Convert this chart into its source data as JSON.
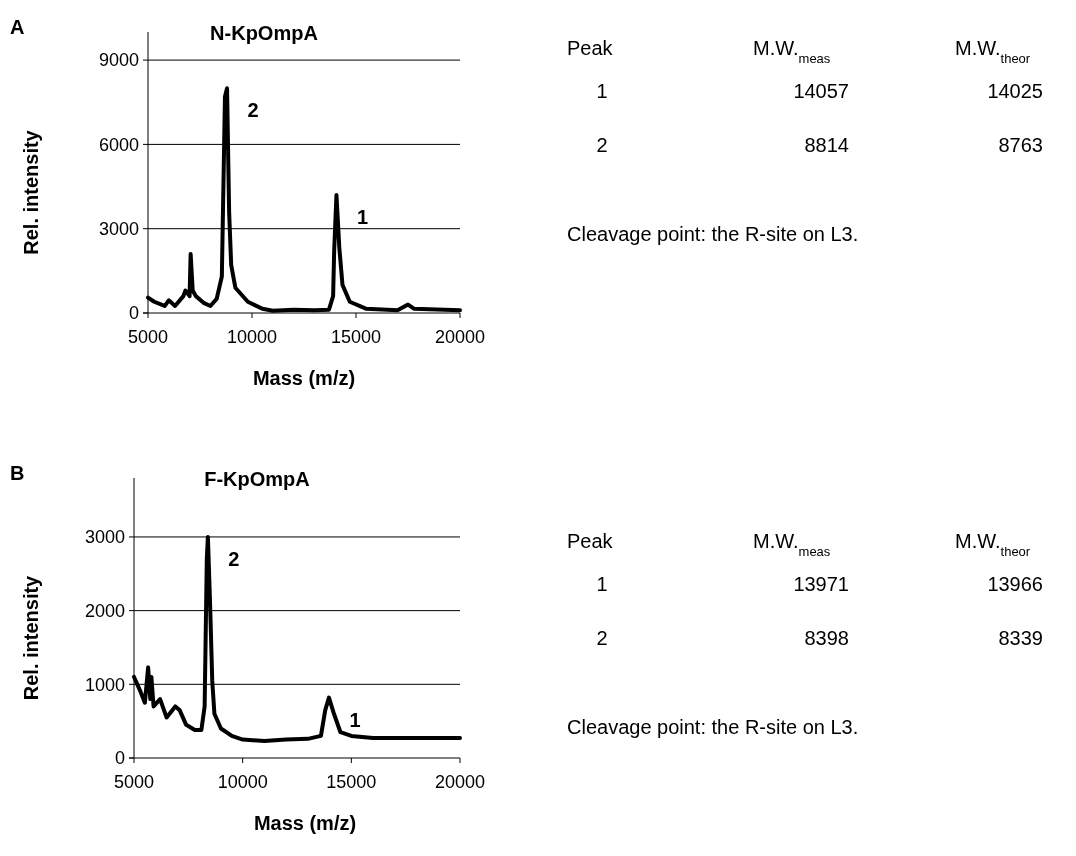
{
  "chart_data": [
    {
      "type": "line",
      "title": "N-KpOmpA",
      "xlabel": "Mass (m/z)",
      "ylabel": "Rel. intensity",
      "xlim": [
        5000,
        20000
      ],
      "xticks": [
        5000,
        10000,
        15000,
        20000
      ],
      "ylim": [
        0,
        10000
      ],
      "yticks": [
        0,
        3000,
        6000,
        9000
      ],
      "grid": "y",
      "annotations": [
        "A",
        {
          "text": "2",
          "x": 8800,
          "y": 8000
        },
        {
          "text": "1",
          "x": 14060,
          "y": 4200
        }
      ],
      "x": [
        5000,
        5300,
        5800,
        6000,
        6300,
        6700,
        6800,
        7000,
        7050,
        7150,
        7300,
        7700,
        8000,
        8300,
        8550,
        8700,
        8800,
        8900,
        9000,
        9200,
        9800,
        10500,
        11000,
        12000,
        13000,
        13700,
        13900,
        13950,
        14060,
        14200,
        14350,
        14700,
        15500,
        17000,
        17500,
        17800,
        20000
      ],
      "series": [
        {
          "color": "#000000",
          "values": [
            550,
            400,
            250,
            450,
            250,
            600,
            800,
            600,
            2100,
            800,
            600,
            350,
            250,
            500,
            1300,
            7700,
            8000,
            3600,
            1700,
            900,
            400,
            150,
            80,
            120,
            100,
            120,
            600,
            2200,
            4200,
            2300,
            1000,
            400,
            150,
            100,
            300,
            150,
            100
          ]
        }
      ]
    },
    {
      "type": "other",
      "annotations": [
        "Peak",
        "M.W.$_{meas}$",
        "M.W.$_{theor}$",
        "1",
        "14057",
        "14025",
        "2",
        "8814",
        "8763",
        "Cleavage point: the R-site on L3."
      ]
    },
    {
      "type": "line",
      "title": "F-KpOmpA",
      "xlabel": "Mass (m/z)",
      "ylabel": "Rel. intensity",
      "xlim": [
        5000,
        20000
      ],
      "xticks": [
        5000,
        10000,
        15000,
        20000
      ],
      "ylim": [
        0,
        3800
      ],
      "yticks": [
        0,
        1000,
        2000,
        3000
      ],
      "grid": "y",
      "annotations": [
        "B",
        {
          "text": "2",
          "x": 8400,
          "y": 3000
        },
        {
          "text": "1",
          "x": 13970,
          "y": 820
        }
      ],
      "x": [
        5000,
        5300,
        5500,
        5650,
        5750,
        5800,
        5900,
        6200,
        6500,
        6900,
        7100,
        7400,
        7800,
        8100,
        8250,
        8350,
        8400,
        8500,
        8600,
        8700,
        9000,
        9500,
        10000,
        11000,
        12000,
        13000,
        13600,
        13800,
        13970,
        14200,
        14500,
        15000,
        16000,
        18000,
        20000
      ],
      "series": [
        {
          "color": "#000000",
          "values": [
            1100,
            900,
            750,
            1230,
            800,
            1100,
            700,
            800,
            550,
            700,
            650,
            450,
            380,
            380,
            700,
            2700,
            3000,
            2100,
            1050,
            600,
            400,
            300,
            250,
            230,
            250,
            260,
            300,
            650,
            820,
            600,
            350,
            300,
            270,
            270,
            270
          ]
        }
      ]
    },
    {
      "type": "other",
      "annotations": [
        "Peak",
        "M.W.$_{meas}$",
        "M.W.$_{theor}$",
        "1",
        "13971",
        "13966",
        "2",
        "8398",
        "8339",
        "Cleavage point: the R-site on L3."
      ]
    }
  ]
}
